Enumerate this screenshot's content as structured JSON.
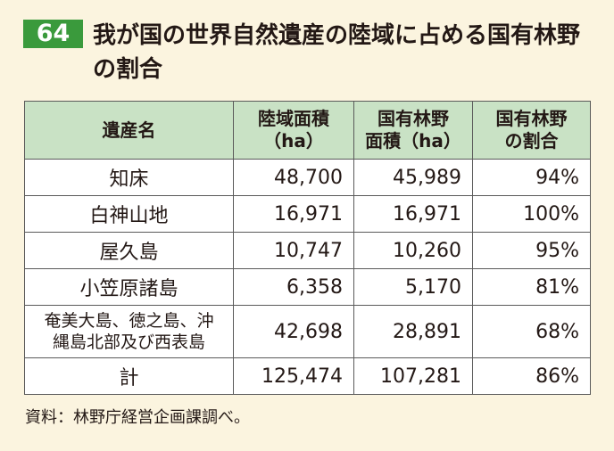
{
  "figure": {
    "number": "64",
    "title": "我が国の世界自然遺産の陸域に占める国有林野の割合"
  },
  "table": {
    "headers": {
      "col1": "遺産名",
      "col2_line1": "陸域面積",
      "col2_line2": "（ha）",
      "col3_line1": "国有林野",
      "col3_line2": "面積（ha）",
      "col4_line1": "国有林野",
      "col4_line2": "の割合"
    },
    "rows": [
      {
        "name": "知床",
        "land_area": "48,700",
        "forest_area": "45,989",
        "ratio": "94%"
      },
      {
        "name": "白神山地",
        "land_area": "16,971",
        "forest_area": "16,971",
        "ratio": "100%"
      },
      {
        "name": "屋久島",
        "land_area": "10,747",
        "forest_area": "10,260",
        "ratio": "95%"
      },
      {
        "name": "小笠原諸島",
        "land_area": "6,358",
        "forest_area": "5,170",
        "ratio": "81%"
      },
      {
        "name_line1": "奄美大島、徳之島、沖",
        "name_line2": "縄島北部及び西表島",
        "land_area": "42,698",
        "forest_area": "28,891",
        "ratio": "68%"
      },
      {
        "name": "計",
        "land_area": "125,474",
        "forest_area": "107,281",
        "ratio": "86%"
      }
    ]
  },
  "source": "資料：林野庁経営企画課調べ。",
  "colors": {
    "background": "#fbf4df",
    "badge": "#3a9a3c",
    "header_fill": "#c9e2c5"
  }
}
